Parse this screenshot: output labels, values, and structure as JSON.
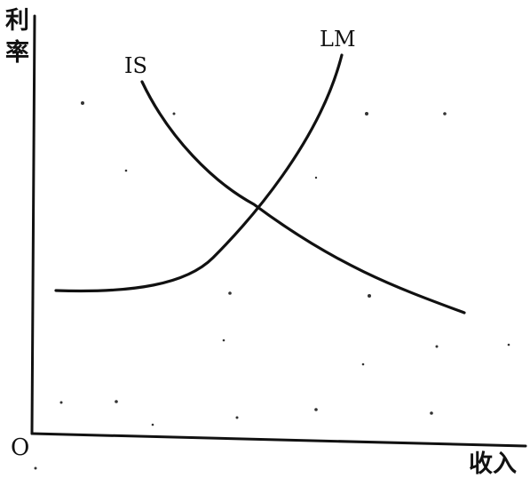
{
  "axes": {
    "y_label_char1": "利",
    "y_label_char2": "率",
    "x_label": "收入",
    "origin_label": "O"
  },
  "curves": {
    "is_label": "IS",
    "lm_label": "LM"
  },
  "colors": {
    "ink": "#111111",
    "paper": "#ffffff"
  }
}
